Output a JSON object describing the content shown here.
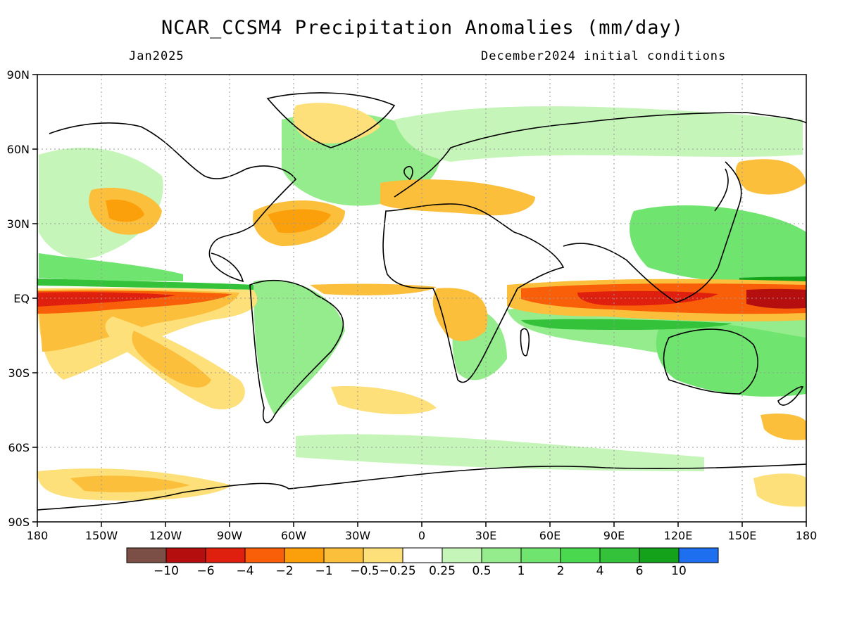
{
  "title": "NCAR_CCSM4 Precipitation Anomalies (mm/day)",
  "subtitle_left": "Jan2025",
  "subtitle_right": "December2024 initial conditions",
  "axes": {
    "x_ticks": [
      "180",
      "150W",
      "120W",
      "90W",
      "60W",
      "30W",
      "0",
      "30E",
      "60E",
      "90E",
      "120E",
      "150E",
      "180"
    ],
    "y_ticks": [
      "90N",
      "60N",
      "30N",
      "EQ",
      "30S",
      "60S",
      "90S"
    ]
  },
  "colorbar": {
    "colors": [
      "#7b4f45",
      "#b40e0e",
      "#e0200f",
      "#f95e08",
      "#fb9f0a",
      "#fbbf3c",
      "#fde079",
      "#ffffff",
      "#c5f5b8",
      "#95ec8c",
      "#6fe46f",
      "#4ad94e",
      "#33c239",
      "#14a21b",
      "#1e6ff0"
    ],
    "labels": [
      "-10",
      "-6",
      "-4",
      "-2",
      "-1",
      "-0.5",
      "-0.25",
      "0.25",
      "0.5",
      "1",
      "2",
      "4",
      "6",
      "10"
    ]
  },
  "legend_text": {
    "n10": "−10",
    "n6": "−6",
    "n4": "−4",
    "n2": "−2",
    "n1": "−1",
    "n05_n025": "−0.5−0.25",
    "p025": "0.25",
    "p05": "0.5",
    "p1": "1",
    "p2": "2",
    "p4": "4",
    "p6": "6",
    "p10": "10"
  }
}
